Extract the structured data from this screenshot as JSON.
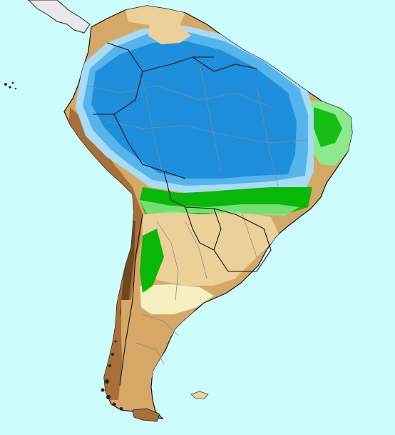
{
  "map": {
    "region": "South America",
    "colors": {
      "ocean": "#cdfcfc",
      "central_america": "#e8e8ec",
      "very_wet": "#1e8fdc",
      "wet": "#55b4ec",
      "moist": "#a8dcf6",
      "green_dark": "#08b808",
      "green_light": "#8ee88e",
      "pale": "#f5f0c0",
      "tan_light": "#ebd09a",
      "tan": "#d6a868",
      "brown": "#a87038",
      "brown_dark": "#704820",
      "national_border": "#111111",
      "state_border": "#8a8a8a"
    }
  }
}
